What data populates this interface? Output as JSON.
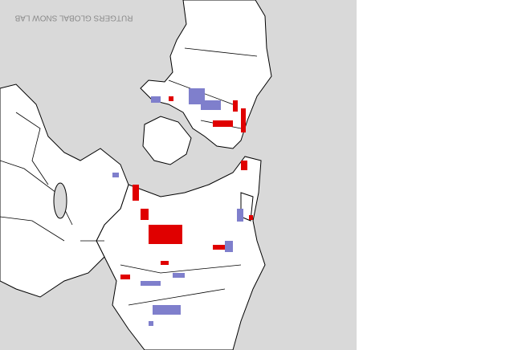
{
  "watermark": "RUTGERS GLOBAL SNOW LAB"
}
